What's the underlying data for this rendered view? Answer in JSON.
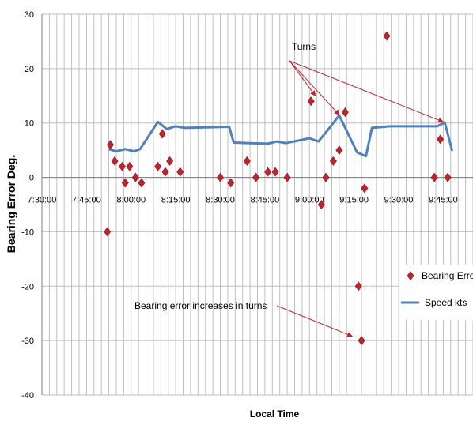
{
  "chart_data": {
    "type": "scatter",
    "xlabel": "Local Time",
    "ylabel": "Bearing Error Deg.",
    "ylim": [
      -40,
      30
    ],
    "y_ticks": [
      30,
      20,
      10,
      0,
      -10,
      -20,
      -30,
      -40
    ],
    "x_range_minutes": [
      "7:30:00",
      "9:55:00"
    ],
    "x_tick_labels": [
      "7:30:00",
      "7:45:00",
      "8:00:00",
      "8:15:00",
      "8:30:00",
      "8:45:00",
      "9:00:00",
      "9:15:00",
      "9:30:00",
      "9:45:00"
    ],
    "grid": true,
    "legend_position": "right",
    "colors": {
      "bearing": "#c0232b",
      "speed": "#4f81bd",
      "annotation": "#c0232b",
      "grid": "#bfbfbf"
    },
    "series": [
      {
        "name": "Bearing Error",
        "kind": "scatter",
        "x": [
          "7:52:00",
          "7:53:00",
          "7:54:30",
          "7:57:00",
          "7:58:00",
          "7:59:30",
          "8:01:30",
          "8:03:30",
          "8:09:00",
          "8:10:30",
          "8:11:30",
          "8:13:00",
          "8:16:30",
          "8:30:00",
          "8:33:30",
          "8:39:00",
          "8:42:00",
          "8:46:00",
          "8:48:30",
          "8:52:30",
          "9:00:30",
          "9:04:00",
          "9:05:30",
          "9:08:00",
          "9:10:00",
          "9:12:00",
          "9:16:30",
          "9:17:30",
          "9:18:30",
          "9:26:00",
          "9:42:00",
          "9:44:00",
          "9:46:30"
        ],
        "y": [
          -10,
          6,
          3,
          2,
          -1,
          2,
          0,
          -1,
          2,
          8,
          1,
          3,
          1,
          0,
          -1,
          3,
          0,
          1,
          1,
          0,
          14,
          -5,
          0,
          3,
          5,
          12,
          -20,
          -30,
          -2,
          26,
          0,
          7,
          0
        ]
      },
      {
        "name": "Speed kts",
        "kind": "line",
        "x": [
          "7:52:30",
          "7:55:00",
          "7:58:00",
          "8:01:00",
          "8:03:00",
          "8:09:00",
          "8:12:00",
          "8:15:00",
          "8:18:00",
          "8:33:00",
          "8:34:30",
          "8:40:00",
          "8:46:00",
          "8:49:00",
          "8:52:00",
          "9:00:00",
          "9:03:00",
          "9:06:00",
          "9:10:00",
          "9:16:00",
          "9:19:00",
          "9:21:00",
          "9:27:00",
          "9:43:00",
          "9:45:30",
          "9:48:00"
        ],
        "y": [
          5.2,
          4.8,
          5.2,
          4.8,
          5.2,
          10.2,
          8.9,
          9.4,
          9.1,
          9.3,
          6.4,
          6.3,
          6.2,
          6.6,
          6.3,
          7.2,
          6.6,
          8.6,
          11.4,
          4.6,
          3.9,
          9.1,
          9.4,
          9.4,
          10.1,
          4.9
        ]
      }
    ],
    "annotations": [
      {
        "text": "Turns",
        "targets": [
          [
            "9:02:00",
            15
          ],
          [
            "9:10:00",
            11.5
          ],
          [
            "9:45:00",
            10.2
          ]
        ]
      },
      {
        "text": "Bearing error increases in turns",
        "targets": [
          [
            "9:16:00",
            -29.5
          ]
        ]
      }
    ]
  }
}
